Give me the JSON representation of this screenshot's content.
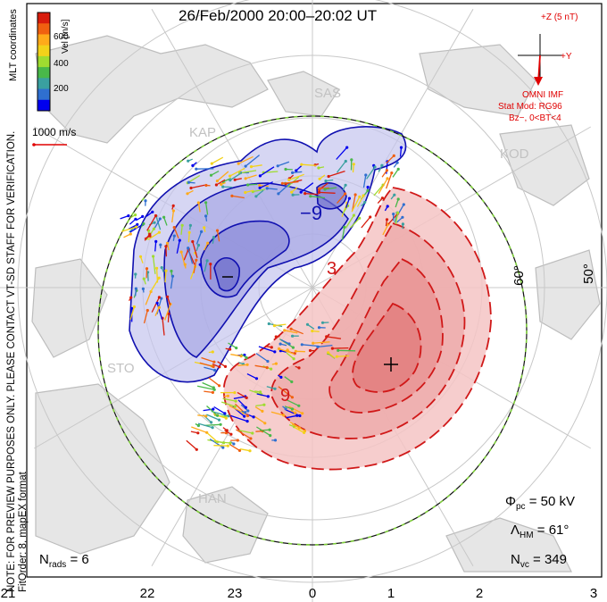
{
  "title": "26/Feb/2000 20:00–20:02 UT",
  "side_note": "NOTE: FOR PREVIEW PURPOSES ONLY. PLEASE CONTACT VT-SD STAFF FOR VERIFICATION.",
  "fit_order": "FitOrder: 8, mapEX format",
  "coords_label": "MLT coordinates",
  "colorbar": {
    "title": "Vel [m/s]",
    "ticks": [
      "600",
      "400",
      "200"
    ],
    "colors": [
      "#0000ee",
      "#2f6fd0",
      "#3aa0a0",
      "#49b84a",
      "#9fdc30",
      "#f2d21a",
      "#ffaa1a",
      "#f06010",
      "#d81c0c"
    ]
  },
  "scale_vector_label": "1000 m/s",
  "imf": {
    "z_label": "+Z (5 nT)",
    "y_label": "+Y",
    "source": "OMNI IMF",
    "stat_mod": "Stat Mod: RG96",
    "condition": "Bz−, 0<BT<4",
    "color": "#e00000"
  },
  "stations": [
    "SAS",
    "KAP",
    "KOD",
    "STO",
    "HAN"
  ],
  "lat_labels": [
    "60°",
    "50°"
  ],
  "contour_labels": [
    "−9",
    "3",
    "9"
  ],
  "stats": {
    "phi_pc": "50 kV",
    "lambda_hm": "61°",
    "n_vc": "349",
    "n_rads": "6"
  },
  "mlt_ticks": [
    "21",
    "22",
    "23",
    "0",
    "1",
    "2",
    "3"
  ],
  "colors": {
    "negative_cell": "#3030c8",
    "positive_cell": "#d82020",
    "boundary": "#00b000"
  }
}
